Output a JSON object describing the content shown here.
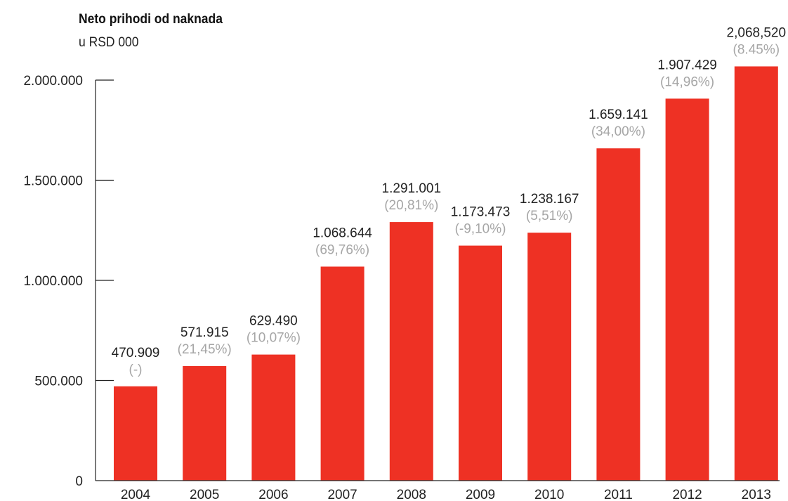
{
  "chart_data": {
    "type": "bar",
    "title": "Neto prihodi od naknada",
    "subtitle": "u RSD 000",
    "categories": [
      "2004",
      "2005",
      "2006",
      "2007",
      "2008",
      "2009",
      "2010",
      "2011",
      "2012",
      "2013"
    ],
    "values": [
      470909,
      571915,
      629490,
      1068644,
      1291001,
      1173473,
      1238167,
      1659141,
      1907429,
      2068520
    ],
    "value_labels": [
      "470.909",
      "571.915",
      "629.490",
      "1.068.644",
      "1.291.001",
      "1.173.473",
      "1.238.167",
      "1.659.141",
      "1.907.429",
      "2,068,520"
    ],
    "growth_labels": [
      "(-)",
      "(21,45%)",
      "(10,07%)",
      "(69,76%)",
      "(20,81%)",
      "(-9,10%)",
      "(5,51%)",
      "(34,00%)",
      "(14,96%)",
      "(8.45%)"
    ],
    "y_ticks": [
      0,
      500000,
      1000000,
      1500000,
      2000000
    ],
    "y_tick_labels": [
      "0",
      "500.000",
      "1.000.000",
      "1.500.000",
      "2.000.000"
    ],
    "ylim": [
      0,
      2000000
    ],
    "grid": false,
    "legend": "none",
    "bar_color": "#ee3124",
    "axis_color": "#222222",
    "growth_label_color": "#a6a6a6"
  }
}
